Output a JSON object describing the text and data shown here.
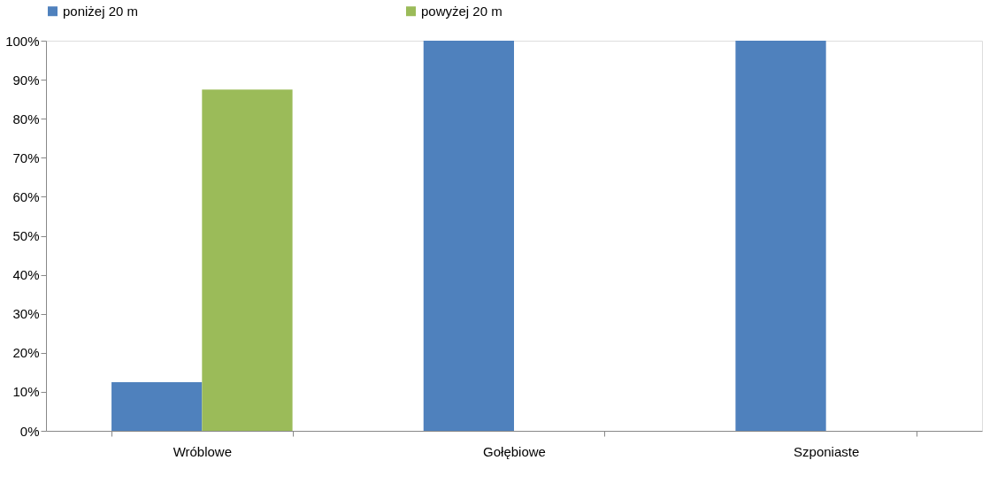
{
  "chart_data": {
    "type": "bar",
    "categories": [
      "Wróblowe",
      "Gołębiowe",
      "Szponiaste"
    ],
    "series": [
      {
        "name": "poniżej 20 m",
        "color": "#4f81bd",
        "values": [
          12.5,
          100,
          100
        ]
      },
      {
        "name": "powyżej 20 m",
        "color": "#9bbb59",
        "values": [
          87.5,
          0,
          0
        ]
      }
    ],
    "ylim": [
      0,
      100
    ],
    "yticks": [
      {
        "value": 0,
        "label": "0%"
      },
      {
        "value": 10,
        "label": "10%"
      },
      {
        "value": 20,
        "label": "20%"
      },
      {
        "value": 30,
        "label": "30%"
      },
      {
        "value": 40,
        "label": "40%"
      },
      {
        "value": 50,
        "label": "50%"
      },
      {
        "value": 60,
        "label": "60%"
      },
      {
        "value": 70,
        "label": "70%"
      },
      {
        "value": 80,
        "label": "80%"
      },
      {
        "value": 90,
        "label": "90%"
      },
      {
        "value": 100,
        "label": "100%"
      }
    ],
    "grid": false,
    "legend": "top"
  }
}
